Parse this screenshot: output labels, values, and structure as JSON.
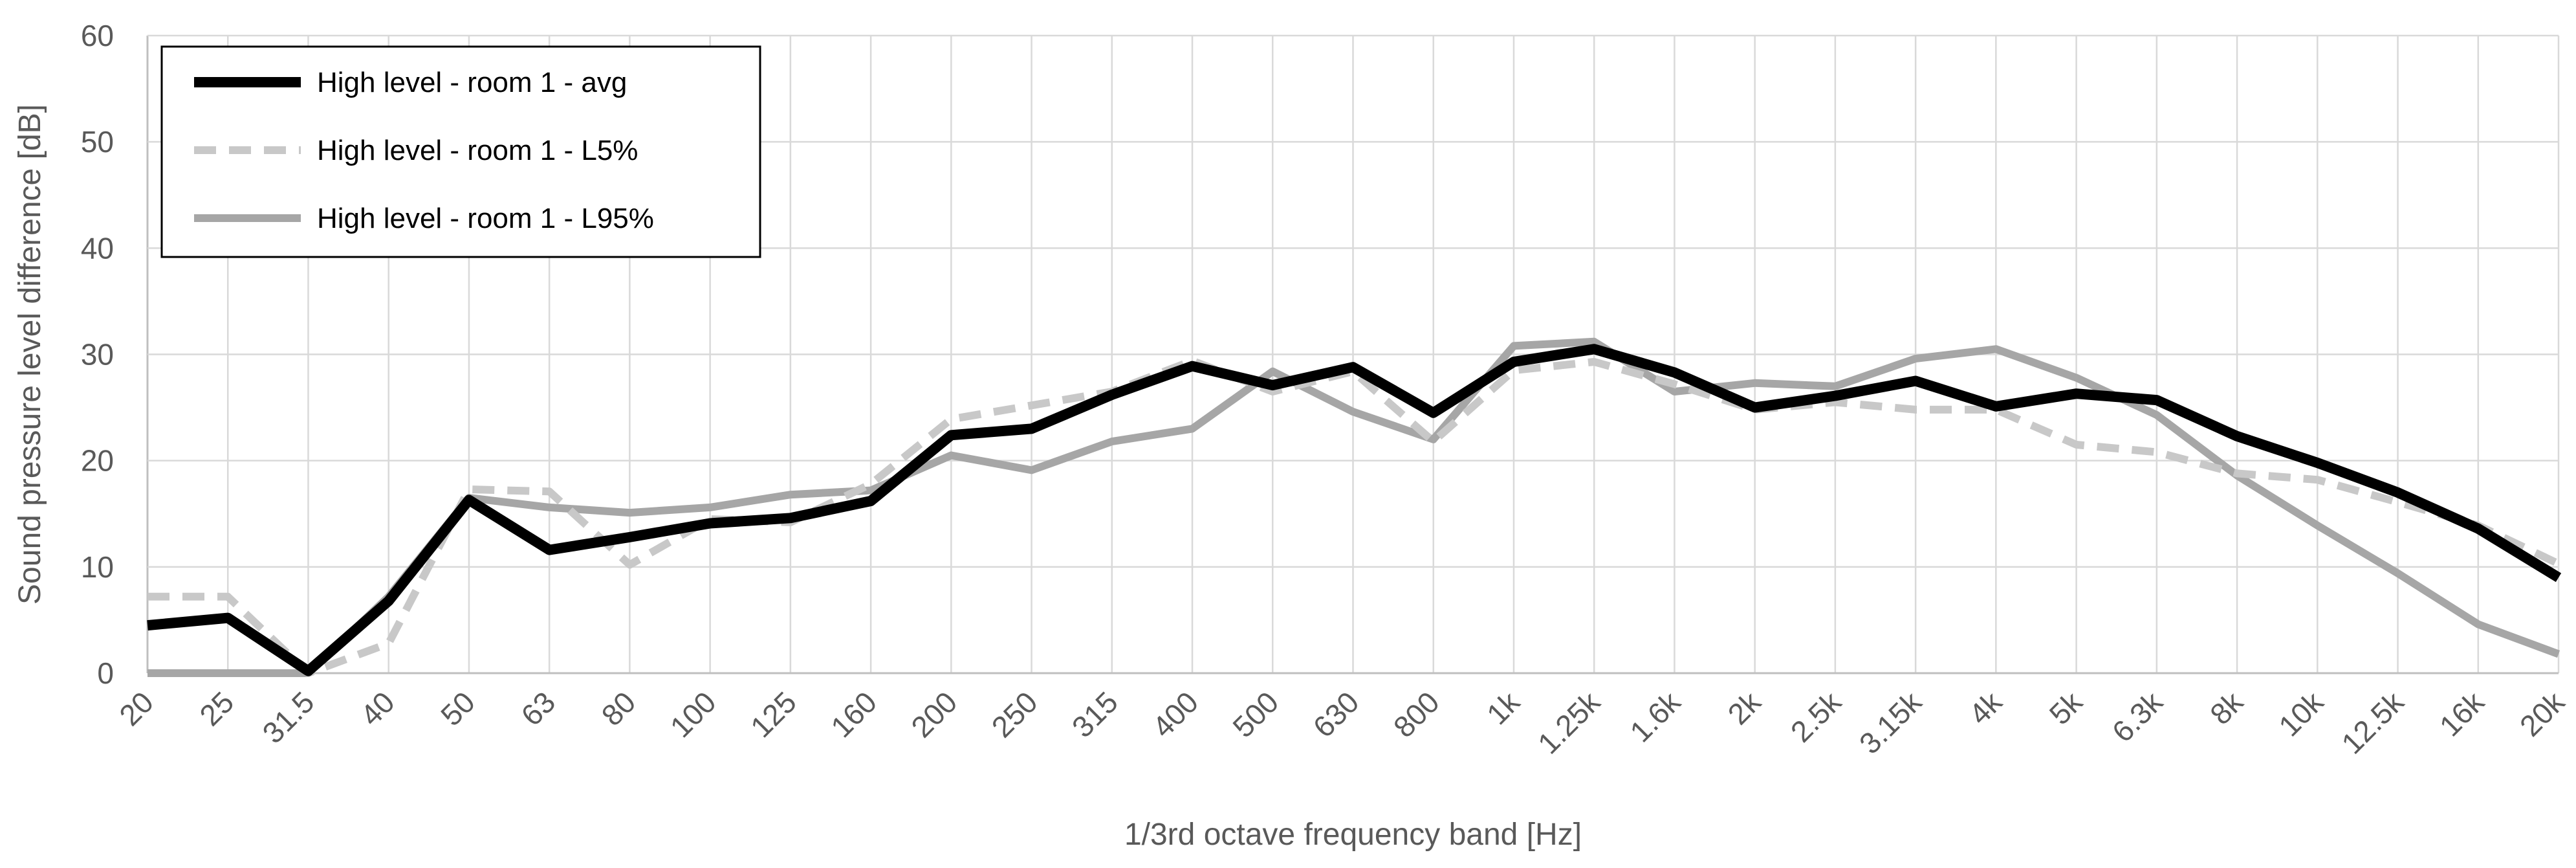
{
  "chart_data": {
    "type": "line",
    "title": "",
    "xlabel": "1/3rd octave frequency band [Hz]",
    "ylabel": "Sound pressure level difference [dB]",
    "ylim": [
      0,
      60
    ],
    "yticks": [
      0,
      10,
      20,
      30,
      40,
      50,
      60
    ],
    "grid": true,
    "legend_position": "top-left",
    "categories": [
      "20",
      "25",
      "31.5",
      "40",
      "50",
      "63",
      "80",
      "100",
      "125",
      "160",
      "200",
      "250",
      "315",
      "400",
      "500",
      "630",
      "800",
      "1k",
      "1.25k",
      "1.6k",
      "2k",
      "2.5k",
      "3.15k",
      "4k",
      "5k",
      "6.3k",
      "8k",
      "10k",
      "12.5k",
      "16k",
      "20k"
    ],
    "series": [
      {
        "name": "High level - room 1 - avg",
        "color": "#000000",
        "dash": "solid",
        "values": [
          4.5,
          5.2,
          0.2,
          6.8,
          16.3,
          11.6,
          12.8,
          14.1,
          14.6,
          16.2,
          22.4,
          23.0,
          26.2,
          28.9,
          27.1,
          28.8,
          24.5,
          29.3,
          30.5,
          28.3,
          25.0,
          26.1,
          27.5,
          25.1,
          26.3,
          25.7,
          22.3,
          19.8,
          17.0,
          13.6,
          9.0
        ]
      },
      {
        "name": "High level - room 1 - L5%",
        "color": "#c8c8c8",
        "dash": "dashed",
        "values": [
          7.2,
          7.2,
          -0.3,
          2.8,
          17.3,
          17.1,
          10.2,
          14.5,
          14.2,
          17.8,
          23.9,
          25.2,
          26.5,
          29.4,
          26.5,
          28.4,
          21.8,
          28.5,
          29.3,
          27.2,
          24.8,
          25.5,
          24.8,
          24.8,
          21.5,
          20.8,
          18.8,
          18.2,
          16.1,
          13.9,
          10.3
        ]
      },
      {
        "name": "High level - room 1  - L95%",
        "color": "#a6a6a6",
        "dash": "solid",
        "values": [
          0.0,
          -0.5,
          -0.8,
          7.2,
          16.5,
          15.6,
          15.1,
          15.6,
          16.8,
          17.2,
          20.5,
          19.1,
          21.8,
          23.0,
          28.4,
          24.6,
          22.0,
          30.8,
          31.2,
          26.5,
          27.3,
          27.0,
          29.6,
          30.5,
          27.8,
          24.3,
          18.6,
          13.9,
          9.4,
          4.6,
          1.8
        ]
      }
    ]
  }
}
